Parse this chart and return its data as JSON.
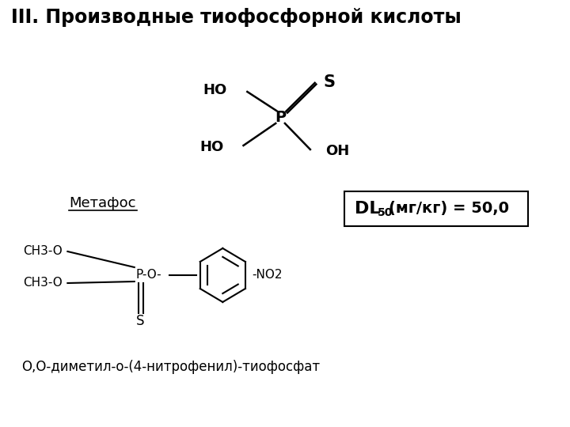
{
  "title": "III. Производные тиофосфорной кислоты",
  "bg_color": "#ffffff",
  "text_color": "#000000",
  "title_fontsize": 17,
  "metafos_label": "Метафос",
  "iupac_name": "О,О-диметил-о-(4-нитрофенил)-тиофосфат",
  "dl_text1": "DL",
  "dl_sub": "50",
  "dl_text2": "(мг/кг) = 50,0",
  "s1_HO_top": "HO",
  "s1_S": "S",
  "s1_P": "P",
  "s1_HO_bot": "HO",
  "s1_OH": "OH",
  "s2_ch3o_top": "CH3-O",
  "s2_ch3o_bot": "CH3-O",
  "s2_po": "P-O-",
  "s2_S": "S",
  "s2_no2": "-NO2"
}
